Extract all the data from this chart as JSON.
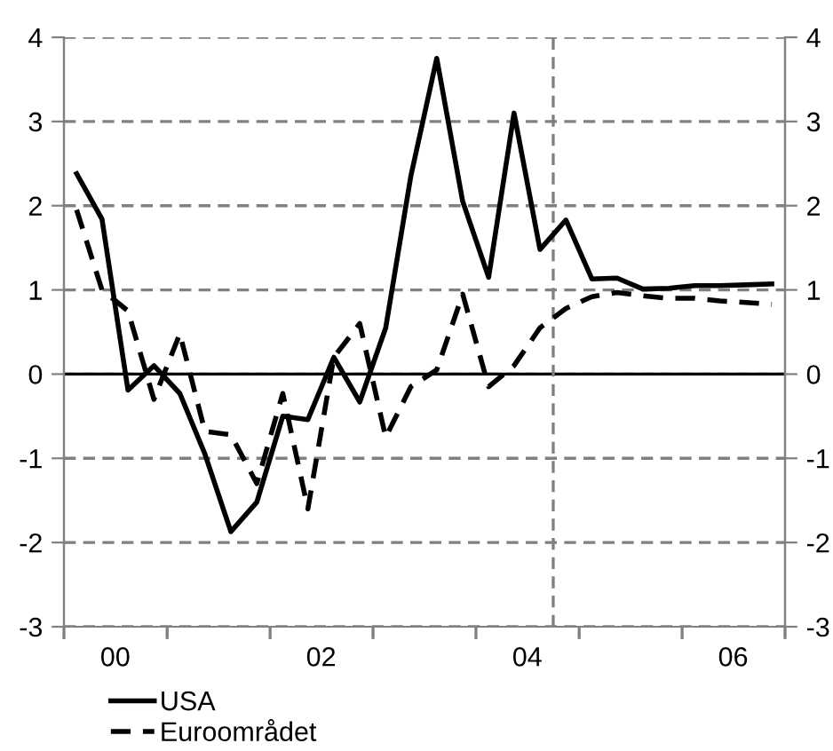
{
  "chart_data": {
    "type": "line",
    "x": [
      "2000-02-15",
      "2000-05-15",
      "2000-08-15",
      "2000-11-15",
      "2001-02-15",
      "2001-05-15",
      "2001-08-15",
      "2001-11-15",
      "2002-02-15",
      "2002-05-15",
      "2002-08-15",
      "2002-11-15",
      "2003-02-15",
      "2003-05-15",
      "2003-08-15",
      "2003-11-15",
      "2004-02-15",
      "2004-05-15",
      "2004-08-15",
      "2004-11-15",
      "2005-02-15",
      "2005-05-15",
      "2005-08-15",
      "2005-11-15",
      "2006-02-15",
      "2006-05-15",
      "2006-08-15",
      "2006-11-15"
    ],
    "series": [
      {
        "name": "USA",
        "color": "#000000",
        "line_style": "solid",
        "values": [
          2.38,
          1.84,
          -0.19,
          0.1,
          -0.23,
          -0.95,
          -1.87,
          -1.52,
          -0.5,
          -0.54,
          0.2,
          -0.33,
          0.55,
          2.35,
          3.75,
          2.05,
          1.15,
          3.1,
          1.48,
          1.83,
          1.13,
          1.14,
          1.01,
          1.02,
          1.05,
          1.05,
          1.06,
          1.07
        ]
      },
      {
        "name": "Euroområdet",
        "color": "#000000",
        "line_style": "dashed",
        "values": [
          1.95,
          1.0,
          0.75,
          -0.3,
          0.48,
          -0.68,
          -0.72,
          -1.3,
          -0.23,
          -1.6,
          0.2,
          0.6,
          -0.75,
          -0.15,
          0.05,
          0.95,
          -0.15,
          0.1,
          0.55,
          0.78,
          0.92,
          0.97,
          0.93,
          0.9,
          0.9,
          0.87,
          0.85,
          0.83
        ]
      }
    ],
    "xlim": [
      "2000-01-01",
      "2007-01-01"
    ],
    "xticks": [
      {
        "value": "2000-01-01",
        "label": null
      },
      {
        "value": "2000-07-01",
        "label": "00"
      },
      {
        "value": "2001-01-01",
        "label": null
      },
      {
        "value": "2002-01-01",
        "label": null
      },
      {
        "value": "2002-07-01",
        "label": "02"
      },
      {
        "value": "2003-01-01",
        "label": null
      },
      {
        "value": "2004-01-01",
        "label": null
      },
      {
        "value": "2004-07-01",
        "label": "04"
      },
      {
        "value": "2005-01-01",
        "label": null
      },
      {
        "value": "2006-01-01",
        "label": null
      },
      {
        "value": "2006-07-01",
        "label": "06"
      },
      {
        "value": "2007-01-01",
        "label": null
      }
    ],
    "ylim": [
      -3,
      4
    ],
    "yticks": [
      -3,
      -2,
      -1,
      0,
      1,
      2,
      3,
      4
    ],
    "y2lim": [
      -3,
      4
    ],
    "y2ticks": [
      -3,
      -2,
      -1,
      0,
      1,
      2,
      3,
      4
    ],
    "grid": "y",
    "ref_lines": [
      {
        "axis": "y",
        "value": 0,
        "color": "#000000",
        "line_style": "solid"
      },
      {
        "axis": "x",
        "value": "2004-10-01",
        "color": "#808080",
        "line_style": "dashed"
      }
    ],
    "legend": "bottom left"
  }
}
